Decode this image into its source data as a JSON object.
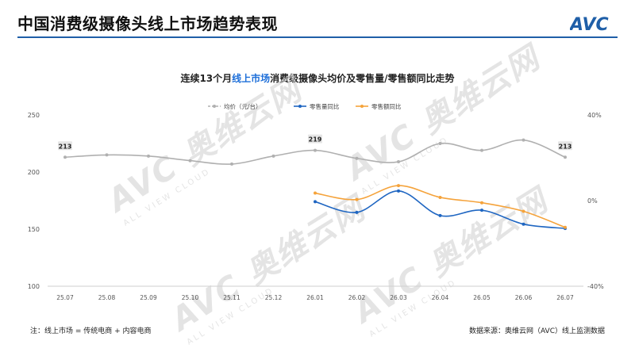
{
  "header": {
    "title": "中国消费级摄像头线上市场趋势表现",
    "logo_text": "AVC"
  },
  "watermark": {
    "text": "AVC 奥维云网",
    "subtext": "ALL VIEW CLOUD"
  },
  "chart_title": {
    "prefix": "连续13个月",
    "highlight": "线上市场",
    "suffix": "消费级摄像头均价及零售量/零售额同比走势"
  },
  "footnote": "注：线上市场 = 传统电商 + 内容电商",
  "source": "数据来源：奥维云网（AVC）线上监测数据",
  "colors": {
    "avg_price": "#b0b0b0",
    "volume_yoy": "#1f66c2",
    "value_yoy": "#f5a33b",
    "accent": "#1f5fa8",
    "highlight": "#1e6fd9"
  },
  "chart_data": {
    "type": "line",
    "categories": [
      "25.07",
      "25.08",
      "25.09",
      "25.10",
      "25.11",
      "25.12",
      "26.01",
      "26.02",
      "26.03",
      "26.04",
      "26.05",
      "26.06",
      "26.07"
    ],
    "y_left": {
      "ticks": [
        "250",
        "200",
        "150",
        "100"
      ],
      "ylim": [
        100,
        250
      ]
    },
    "y_right": {
      "ticks": [
        "40%",
        "0%",
        "-40%"
      ],
      "ylim": [
        -40,
        40
      ],
      "unit": "%"
    },
    "series": [
      {
        "name": "均价（元/台）",
        "axis": "left",
        "style": "dashed",
        "values": [
          213,
          215,
          214,
          210,
          207,
          214,
          219,
          212,
          209,
          225,
          219,
          228,
          213
        ],
        "labels": [
          "213",
          "",
          "",
          "",
          "",
          "",
          "219",
          "",
          "",
          "",
          "",
          "",
          "213"
        ]
      },
      {
        "name": "零售量同比",
        "axis": "right",
        "style": "solid",
        "values": [
          null,
          null,
          null,
          null,
          null,
          null,
          -0.5,
          -5.5,
          4.5,
          -7,
          -4.5,
          -11,
          -13
        ]
      },
      {
        "name": "零售额同比",
        "axis": "right",
        "style": "solid",
        "values": [
          null,
          null,
          null,
          null,
          null,
          null,
          3.5,
          0.5,
          7,
          1.5,
          -1,
          -5,
          -12.5
        ]
      }
    ],
    "legend_position": "top-center",
    "grid": false
  }
}
